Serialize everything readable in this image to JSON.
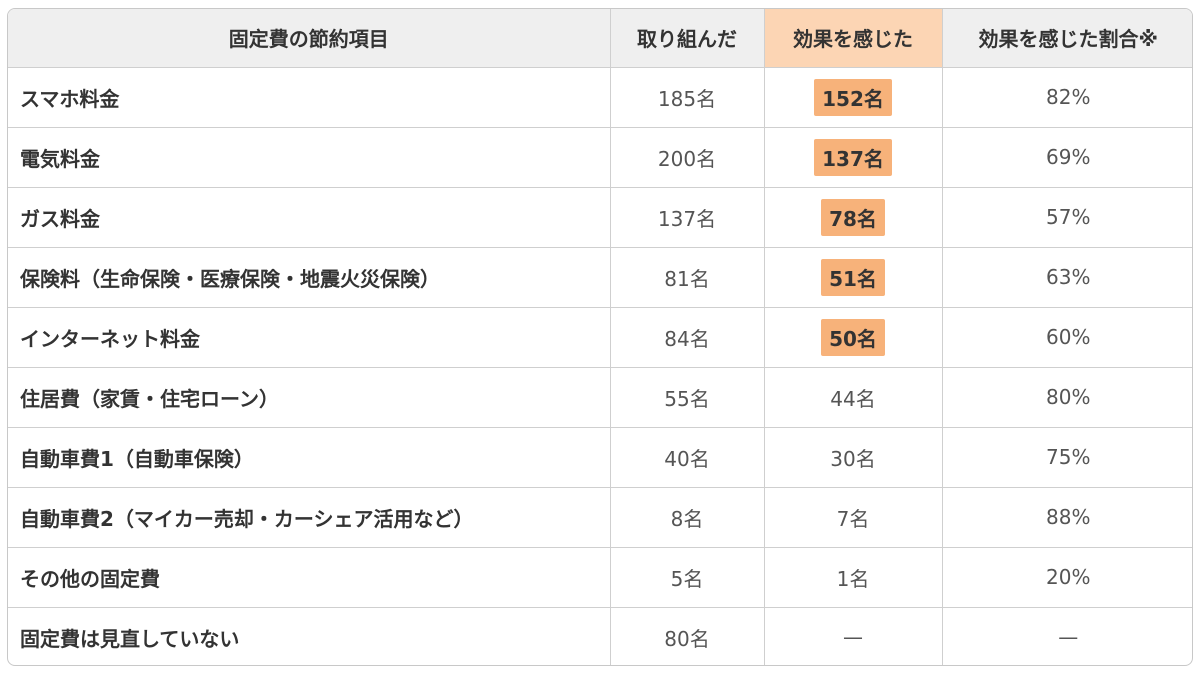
{
  "chart_data": {
    "type": "table",
    "columns": [
      "固定費の節約項目",
      "取り組んだ",
      "効果を感じた",
      "効果を感じた割合※"
    ],
    "highlight_color": "#f7b27a",
    "highlight_header_color": "#fcd5b4",
    "rows": [
      {
        "item": "スマホ料金",
        "tried": "185名",
        "felt": "152名",
        "ratio": "82%",
        "highlight": true
      },
      {
        "item": "電気料金",
        "tried": "200名",
        "felt": "137名",
        "ratio": "69%",
        "highlight": true
      },
      {
        "item": "ガス料金",
        "tried": "137名",
        "felt": "78名",
        "ratio": "57%",
        "highlight": true
      },
      {
        "item": "保険料（生命保険・医療保険・地震火災保険）",
        "tried": "81名",
        "felt": "51名",
        "ratio": "63%",
        "highlight": true
      },
      {
        "item": "インターネット料金",
        "tried": "84名",
        "felt": "50名",
        "ratio": "60%",
        "highlight": true
      },
      {
        "item": "住居費（家賃・住宅ローン）",
        "tried": "55名",
        "felt": "44名",
        "ratio": "80%",
        "highlight": false
      },
      {
        "item": "自動車費1（自動車保険）",
        "tried": "40名",
        "felt": "30名",
        "ratio": "75%",
        "highlight": false
      },
      {
        "item": "自動車費2（マイカー売却・カーシェア活用など）",
        "tried": "8名",
        "felt": "7名",
        "ratio": "88%",
        "highlight": false
      },
      {
        "item": "その他の固定費",
        "tried": "5名",
        "felt": "1名",
        "ratio": "20%",
        "highlight": false
      },
      {
        "item": "固定費は見直していない",
        "tried": "80名",
        "felt": "—",
        "ratio": "—",
        "highlight": false
      }
    ]
  }
}
